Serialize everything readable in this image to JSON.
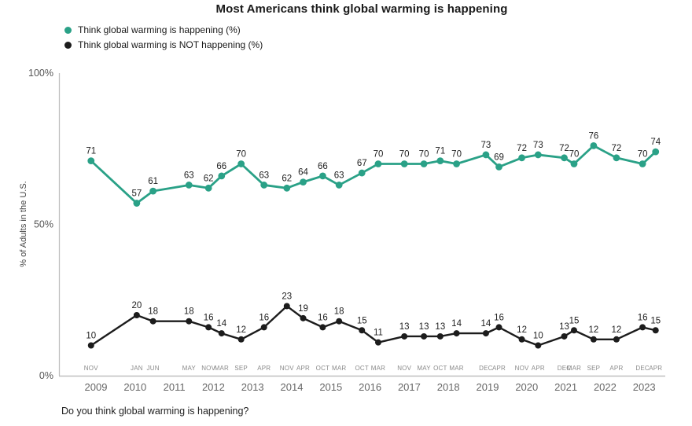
{
  "chart_data": {
    "type": "line",
    "title": "Most Americans think global warming is happening",
    "ylabel": "% of Adults in the U.S.",
    "question": "Do you think global warming is happening?",
    "ylim": [
      0,
      100
    ],
    "grid": false,
    "legend_position": "top-left",
    "yticks": [
      {
        "value": 0,
        "label": "0%"
      },
      {
        "value": 50,
        "label": "50%"
      },
      {
        "value": 100,
        "label": "100%"
      }
    ],
    "year_ticks": [
      2009,
      2010,
      2011,
      2012,
      2013,
      2014,
      2015,
      2016,
      2017,
      2018,
      2019,
      2020,
      2021,
      2022,
      2023
    ],
    "points": [
      {
        "month": "NOV",
        "year": 2008,
        "month_num": 11
      },
      {
        "month": "JAN",
        "year": 2010,
        "month_num": 1
      },
      {
        "month": "JUN",
        "year": 2010,
        "month_num": 6
      },
      {
        "month": "MAY",
        "year": 2011,
        "month_num": 5
      },
      {
        "month": "NOV",
        "year": 2011,
        "month_num": 11
      },
      {
        "month": "MAR",
        "year": 2012,
        "month_num": 3
      },
      {
        "month": "SEP",
        "year": 2012,
        "month_num": 9
      },
      {
        "month": "APR",
        "year": 2013,
        "month_num": 4
      },
      {
        "month": "NOV",
        "year": 2013,
        "month_num": 11
      },
      {
        "month": "APR",
        "year": 2014,
        "month_num": 4
      },
      {
        "month": "OCT",
        "year": 2014,
        "month_num": 10
      },
      {
        "month": "MAR",
        "year": 2015,
        "month_num": 3
      },
      {
        "month": "OCT",
        "year": 2015,
        "month_num": 10
      },
      {
        "month": "MAR",
        "year": 2016,
        "month_num": 3
      },
      {
        "month": "NOV",
        "year": 2016,
        "month_num": 11
      },
      {
        "month": "MAY",
        "year": 2017,
        "month_num": 5
      },
      {
        "month": "OCT",
        "year": 2017,
        "month_num": 10
      },
      {
        "month": "MAR",
        "year": 2018,
        "month_num": 3
      },
      {
        "month": "DEC",
        "year": 2018,
        "month_num": 12
      },
      {
        "month": "APR",
        "year": 2019,
        "month_num": 4
      },
      {
        "month": "NOV",
        "year": 2019,
        "month_num": 11
      },
      {
        "month": "APR",
        "year": 2020,
        "month_num": 4
      },
      {
        "month": "DEC",
        "year": 2020,
        "month_num": 12
      },
      {
        "month": "MAR",
        "year": 2021,
        "month_num": 3
      },
      {
        "month": "SEP",
        "year": 2021,
        "month_num": 9
      },
      {
        "month": "APR",
        "year": 2022,
        "month_num": 4
      },
      {
        "month": "DEC",
        "year": 2022,
        "month_num": 12
      },
      {
        "month": "APR",
        "year": 2023,
        "month_num": 4
      }
    ],
    "series": [
      {
        "name": "Think global warming is happening (%)",
        "color": "#2AA187",
        "values": [
          71,
          57,
          61,
          63,
          62,
          66,
          70,
          63,
          62,
          64,
          66,
          63,
          67,
          70,
          70,
          70,
          71,
          70,
          73,
          69,
          72,
          73,
          72,
          70,
          76,
          72,
          70,
          74
        ]
      },
      {
        "name": "Think global warming is NOT happening (%)",
        "color": "#1C1C1C",
        "values": [
          10,
          20,
          18,
          18,
          16,
          14,
          12,
          16,
          23,
          19,
          16,
          18,
          15,
          11,
          13,
          13,
          13,
          14,
          14,
          16,
          12,
          10,
          13,
          15,
          12,
          12,
          16,
          15
        ]
      }
    ],
    "colors": {
      "axis_line": "#bfbfbf",
      "year_label": "#666666",
      "month_label": "#8a8a8a",
      "ytick_label": "#555555",
      "value_label": "#1f1f1f"
    }
  }
}
